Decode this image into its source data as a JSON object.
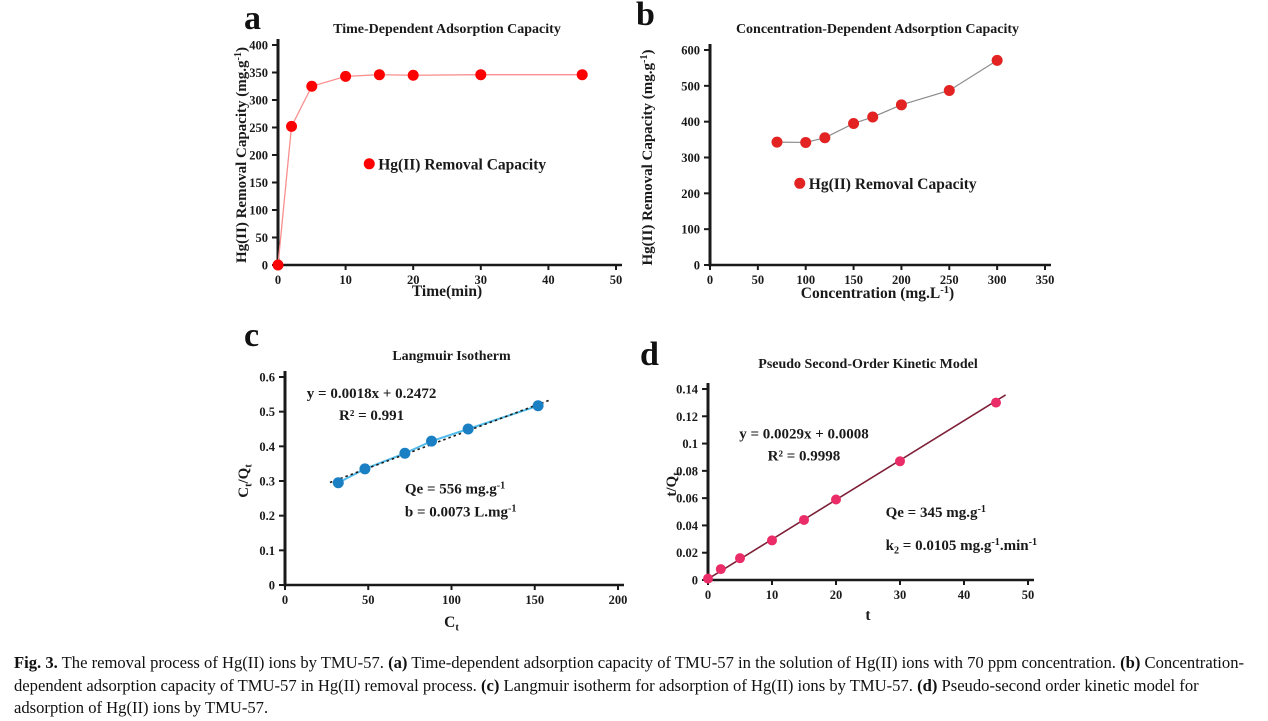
{
  "figure_label": "Fig. 3.",
  "caption": {
    "segments": [
      {
        "t": "Fig. 3.",
        "b": true
      },
      {
        "t": "  The removal process of Hg(II) ions by TMU-57. ",
        "b": false
      },
      {
        "t": "(a)",
        "b": true
      },
      {
        "t": " Time-dependent adsorption capacity of TMU-57 in the solution of Hg(II) ions with 70 ppm concentration. ",
        "b": false
      },
      {
        "t": "(b)",
        "b": true
      },
      {
        "t": " Concentration-dependent adsorption capacity of TMU-57 in Hg(II) removal process. ",
        "b": false
      },
      {
        "t": "(c)",
        "b": true
      },
      {
        "t": " Langmuir isotherm for adsorption of Hg(II) ions by TMU-57. ",
        "b": false
      },
      {
        "t": "(d)",
        "b": true
      },
      {
        "t": " Pseudo-second order kinetic model for adsorption of Hg(II) ions by TMU-57.",
        "b": false
      }
    ]
  },
  "chart_data": [
    {
      "panel_label": "a",
      "type": "line",
      "title": "Time-Dependent Adsorption Capacity",
      "xlabel": "Time(min)",
      "ylabel": "Hg(II) Removal Capacity (mg.g⁻¹)",
      "xlim": [
        0,
        50
      ],
      "ylim": [
        0,
        400
      ],
      "xticks": [
        0,
        10,
        20,
        30,
        40,
        50
      ],
      "yticks": [
        0,
        50,
        100,
        150,
        200,
        250,
        300,
        350,
        400
      ],
      "x": [
        0,
        2,
        5,
        10,
        15,
        20,
        30,
        45
      ],
      "y": [
        0,
        252,
        325,
        343,
        346,
        345,
        346,
        346
      ],
      "marker_color": "#fe0000",
      "line_color": "#f98f8f",
      "line_width": 1.3,
      "marker_r": 5.5,
      "legend": {
        "label": "Hg(II) Removal Capacity",
        "fx": 0.27,
        "fy": 0.54,
        "color": "#fe0000"
      },
      "grid": false,
      "legend_position": "inside-center-left"
    },
    {
      "panel_label": "b",
      "type": "line",
      "title": "Concentration-Dependent Adsorption Capacity",
      "xlabel": "Concentration (mg.L⁻¹)",
      "ylabel": "Hg(II) Removal Capacity (mg.g⁻¹)",
      "xlim": [
        0,
        350
      ],
      "ylim": [
        0,
        600
      ],
      "xticks": [
        0,
        50,
        100,
        150,
        200,
        250,
        300,
        350
      ],
      "yticks": [
        0,
        100,
        200,
        300,
        400,
        500,
        600
      ],
      "x": [
        70,
        100,
        120,
        150,
        170,
        200,
        250,
        300
      ],
      "y": [
        343,
        342,
        355,
        395,
        413,
        447,
        487,
        571
      ],
      "marker_color": "#e32222",
      "line_color": "#8c8c8c",
      "line_width": 1.2,
      "marker_r": 5.5,
      "legend": {
        "label": "Hg(II) Removal Capacity",
        "fx": 0.268,
        "fy": 0.62,
        "color": "#e32222"
      },
      "grid": false,
      "legend_position": "inside-center-left"
    },
    {
      "panel_label": "c",
      "type": "scatter",
      "title": "Langmuir Isotherm",
      "xlabel": "Cₜ",
      "ylabel": "Cₜ/Qₜ",
      "xlim": [
        0,
        200
      ],
      "ylim": [
        0,
        0.6
      ],
      "xticks": [
        0,
        50,
        100,
        150,
        200
      ],
      "yticks": [
        0,
        0.1,
        0.2,
        0.3,
        0.4,
        0.5,
        0.6
      ],
      "ytick_labels": [
        "0",
        "0.1",
        "0.2",
        "0.3",
        "0.4",
        "0.5",
        "0.6"
      ],
      "x": [
        32,
        48,
        72,
        88,
        110,
        152
      ],
      "y": [
        0.295,
        0.335,
        0.38,
        0.415,
        0.45,
        0.517
      ],
      "marker_color": "#1b7fc4",
      "line_color": "#52bdeb",
      "line_width": 2,
      "marker_r": 5.5,
      "trendline": {
        "slope": 0.0018,
        "intercept": 0.2472,
        "x0": 27,
        "x1": 159,
        "color": "#1a1a1a",
        "dash": "2.5,3",
        "width": 1.6
      },
      "equation": {
        "lines": [
          "y = 0.0018x + 0.2472",
          "R² = 0.991"
        ],
        "fx": 0.26,
        "fy": 0.1,
        "anchor": "middle",
        "gap": 22
      },
      "note": {
        "lines": [
          "Qe = 556 mg.g⁻¹",
          "b = 0.0073 L.mg⁻¹"
        ],
        "fx": 0.36,
        "fy": 0.56,
        "anchor": "start",
        "gap": 23
      },
      "grid": false
    },
    {
      "panel_label": "d",
      "type": "scatter",
      "title": "Pseudo Second-Order Kinetic Model",
      "xlabel": "t",
      "ylabel": "t/Qₜ",
      "xlim": [
        0,
        50
      ],
      "ylim": [
        0,
        0.14
      ],
      "xticks": [
        0,
        10,
        20,
        30,
        40,
        50
      ],
      "yticks": [
        0,
        0.02,
        0.04,
        0.06,
        0.08,
        0.1,
        0.12,
        0.14
      ],
      "ytick_labels": [
        "0",
        "0.02",
        "0.04",
        "0.06",
        "0.08",
        "0.1",
        "0.12",
        "0.14"
      ],
      "x": [
        0,
        2,
        5,
        10,
        15,
        20,
        30,
        45
      ],
      "y": [
        0.001,
        0.008,
        0.016,
        0.029,
        0.044,
        0.059,
        0.087,
        0.13
      ],
      "marker_color": "#ea2d68",
      "marker_r": 5,
      "trendline": {
        "slope": 0.0029,
        "intercept": 0.0008,
        "x0": 0,
        "x1": 46.5,
        "color": "#7e2038",
        "width": 1.6
      },
      "equation": {
        "lines": [
          "y = 0.0029x + 0.0008",
          "R² = 0.9998"
        ],
        "fx": 0.3,
        "fy": 0.26,
        "anchor": "middle",
        "gap": 22
      },
      "note": {
        "lines": [
          "Qe = 345 mg.g⁻¹",
          "k₂ = 0.0105 mg.g⁻¹.min⁻¹"
        ],
        "fx": 0.555,
        "fy": 0.67,
        "anchor": "start",
        "gap": 33
      },
      "grid": false
    }
  ]
}
